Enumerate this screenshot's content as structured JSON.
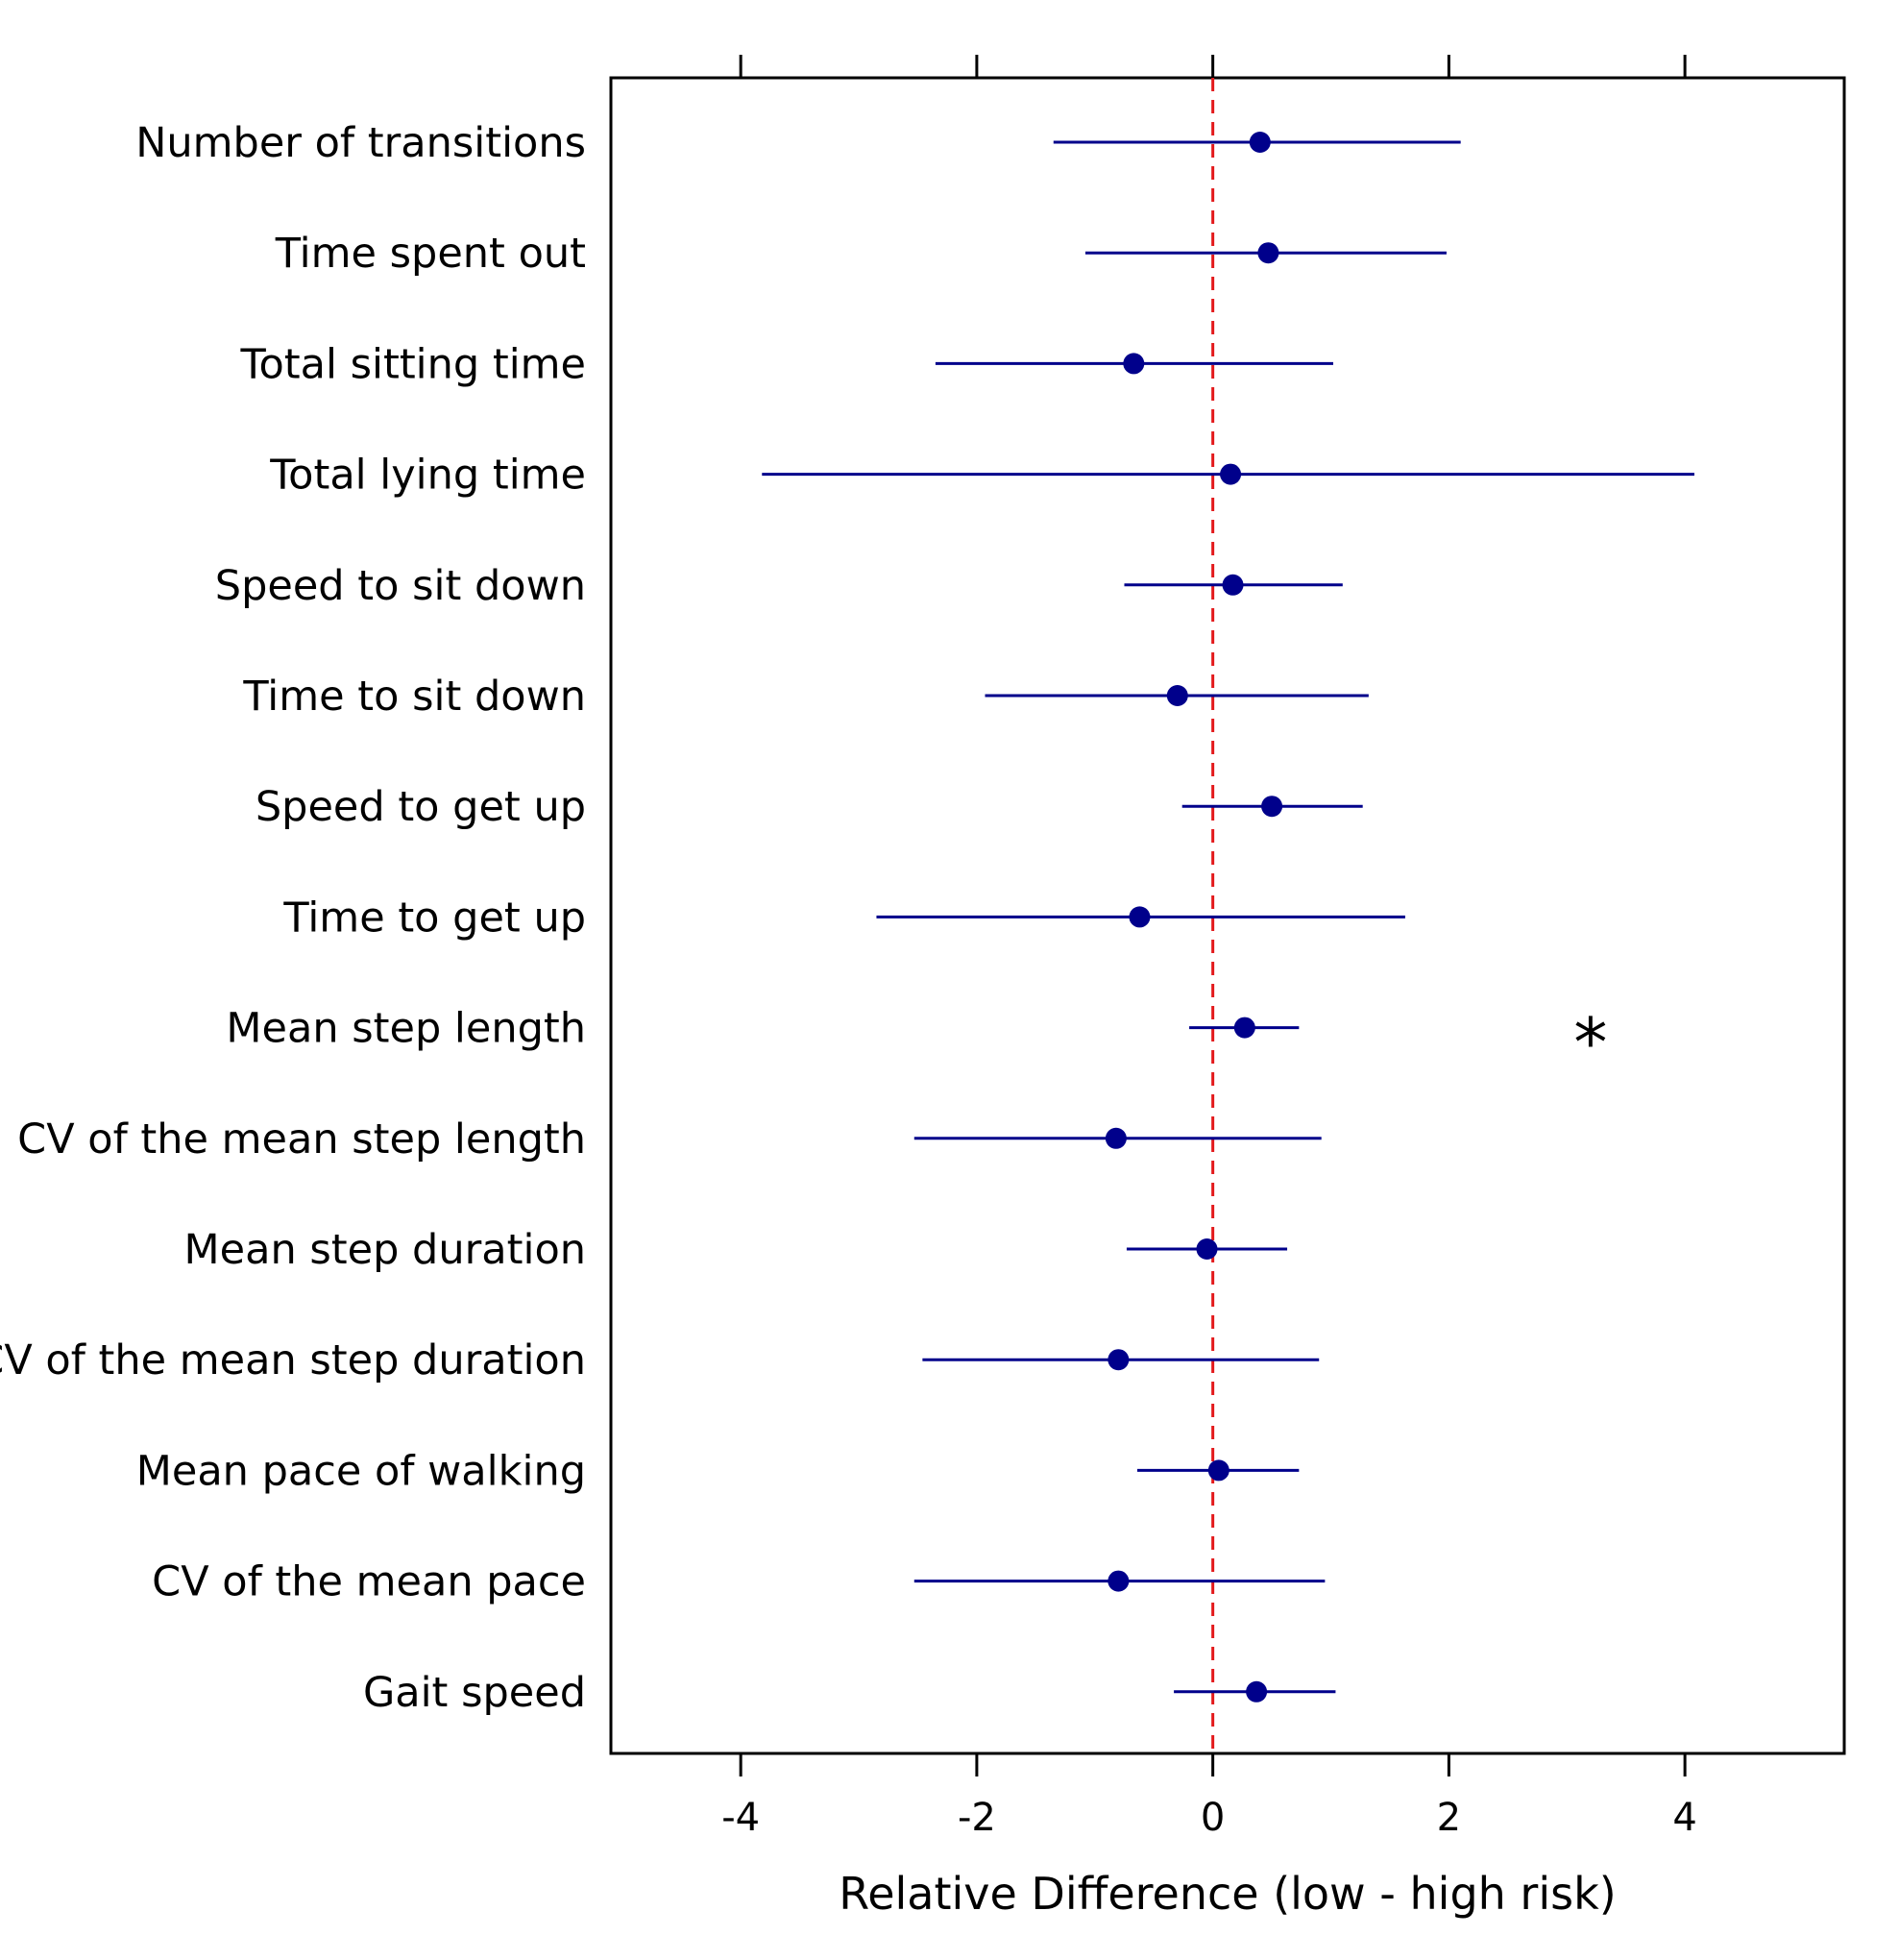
{
  "chart_data": {
    "type": "forest",
    "xlabel": "Relative Difference (low - high risk)",
    "xlim": [
      -5.1,
      5.35
    ],
    "xticks": [
      -4,
      -2,
      0,
      2,
      4
    ],
    "xtick_labels": [
      "-4",
      "-2",
      "0",
      "2",
      "4"
    ],
    "reference_line": {
      "x": 0,
      "style": "dashed",
      "color": "#e31a1c"
    },
    "grid": false,
    "colors": {
      "point": "#00008b",
      "ci": "#00008b",
      "frame": "#000000"
    },
    "rows": [
      {
        "label": "Number of transitions",
        "estimate": 0.4,
        "lower": -1.35,
        "upper": 2.1
      },
      {
        "label": "Time spent out",
        "estimate": 0.47,
        "lower": -1.08,
        "upper": 1.98
      },
      {
        "label": "Total sitting time",
        "estimate": -0.67,
        "lower": -2.35,
        "upper": 1.02
      },
      {
        "label": "Total lying time",
        "estimate": 0.15,
        "lower": -3.82,
        "upper": 4.08
      },
      {
        "label": "Speed to sit down",
        "estimate": 0.17,
        "lower": -0.75,
        "upper": 1.1
      },
      {
        "label": "Time to sit down",
        "estimate": -0.3,
        "lower": -1.93,
        "upper": 1.32
      },
      {
        "label": "Speed to get up",
        "estimate": 0.5,
        "lower": -0.26,
        "upper": 1.27
      },
      {
        "label": "Time to get up",
        "estimate": -0.62,
        "lower": -2.85,
        "upper": 1.63
      },
      {
        "label": "Mean step length",
        "estimate": 0.27,
        "lower": -0.2,
        "upper": 0.73
      },
      {
        "label": "CV of the mean step length",
        "estimate": -0.82,
        "lower": -2.53,
        "upper": 0.92
      },
      {
        "label": "Mean step duration",
        "estimate": -0.05,
        "lower": -0.73,
        "upper": 0.63
      },
      {
        "label": "CV of the mean step duration",
        "estimate": -0.8,
        "lower": -2.46,
        "upper": 0.9
      },
      {
        "label": "Mean pace of walking",
        "estimate": 0.05,
        "lower": -0.64,
        "upper": 0.73
      },
      {
        "label": "CV of the mean pace",
        "estimate": -0.8,
        "lower": -2.53,
        "upper": 0.95
      },
      {
        "label": "Gait speed",
        "estimate": 0.37,
        "lower": -0.33,
        "upper": 1.04
      }
    ],
    "annotations": [
      {
        "text": "*",
        "row": "Mean step length",
        "x": 3.2
      }
    ]
  }
}
